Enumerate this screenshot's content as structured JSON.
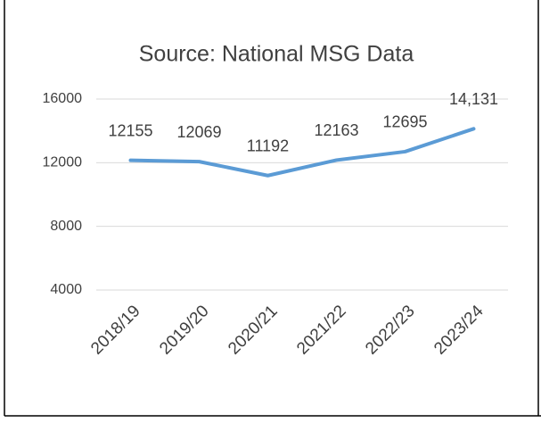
{
  "chart_data": {
    "type": "line",
    "title": "Source: National MSG Data",
    "categories": [
      "2018/19",
      "2019/20",
      "2020/21",
      "2021/22",
      "2022/23",
      "2023/24"
    ],
    "values": [
      12155,
      12069,
      11192,
      12163,
      12695,
      14131
    ],
    "value_labels": [
      "12155",
      "12069",
      "11192",
      "12163",
      "12695",
      "14,131"
    ],
    "color": "#5b9bd5",
    "ylim": [
      4000,
      16000
    ],
    "yticks": [
      4000,
      8000,
      12000,
      16000
    ],
    "grid": true
  }
}
